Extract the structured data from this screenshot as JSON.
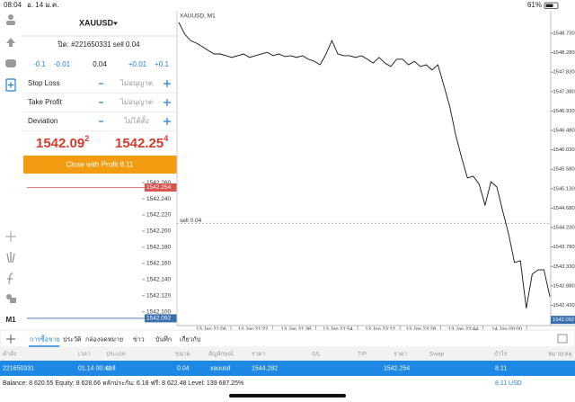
{
  "status_bar": {
    "time": "08:04",
    "date": "อ. 14 ม.ค.",
    "battery": "61%"
  },
  "sidebar": {
    "timeframe": "M1"
  },
  "order_panel": {
    "symbol": "XAUUSD",
    "order": "ปิด: #221650331 sell 0.04",
    "volume_steps": [
      "-0.1",
      "-0.01",
      "+0.01",
      "+0.1"
    ],
    "volume": "0.04",
    "fields": [
      {
        "label": "Stop Loss",
        "value": "ไม่อนุญาต"
      },
      {
        "label": "Take Profit",
        "value": "ไม่อนุญาต"
      },
      {
        "label": "Deviation",
        "value": "ไม่ได้ตั้ง"
      }
    ],
    "bid": {
      "main": "1542.09",
      "small": "2"
    },
    "ask": {
      "main": "1542.25",
      "small": "4"
    },
    "close_button": "Close with Profit 8.11"
  },
  "depth_chart": {
    "ylim": [
      1542.083,
      1542.269
    ],
    "yticks": [
      {
        "value": 1542.26,
        "label": "1542.260"
      },
      {
        "value": 1542.24,
        "label": "1542.240"
      },
      {
        "value": 1542.22,
        "label": "1542.220"
      },
      {
        "value": 1542.2,
        "label": "1542.200"
      },
      {
        "value": 1542.18,
        "label": "1542.180"
      },
      {
        "value": 1542.16,
        "label": "1542.160"
      },
      {
        "value": 1542.14,
        "label": "1542.140"
      },
      {
        "value": 1542.12,
        "label": "1542.120"
      },
      {
        "value": 1542.1,
        "label": "1542.100"
      }
    ],
    "ask": {
      "value": 1542.254,
      "label": "1542.254",
      "color": "#d9534f"
    },
    "bid": {
      "value": 1542.092,
      "label": "1542.092",
      "color": "#3a6fb0"
    }
  },
  "chart_data": {
    "type": "line",
    "title": "XAUUSD, M1",
    "color": "#111111",
    "values": [
      1548.98,
      1548.71,
      1548.56,
      1548.5,
      1548.42,
      1548.33,
      1548.25,
      1548.25,
      1548.21,
      1548.17,
      1548.21,
      1548.25,
      1548.17,
      1548.21,
      1548.25,
      1548.29,
      1548.21,
      1548.25,
      1548.19,
      1548.21,
      1548.17,
      1548.21,
      1548.13,
      1548.08,
      1548.0,
      1548.25,
      1548.56,
      1548.25,
      1548.21,
      1548.21,
      1548.17,
      1548.21,
      1548.13,
      1548.04,
      1548.17,
      1548.04,
      1547.96,
      1548.13,
      1548.13,
      1548.0,
      1548.08,
      1547.96,
      1548.0,
      1547.88,
      1548.0,
      1547.52,
      1547.04,
      1546.38,
      1545.86,
      1545.38,
      1545.42,
      1545.23,
      1544.75,
      1545.29,
      1545.17,
      1544.61,
      1544.08,
      1543.42,
      1543.46,
      1542.36,
      1543.15,
      1543.25,
      1543.25,
      1542.63
    ],
    "xlim": [
      0,
      63
    ],
    "ylim": [
      1541.96,
      1549.25
    ],
    "yticks": [
      {
        "value": 1548.73,
        "label": "1548.730"
      },
      {
        "value": 1548.28,
        "label": "1548.280"
      },
      {
        "value": 1547.83,
        "label": "1547.830"
      },
      {
        "value": 1547.38,
        "label": "1547.380"
      },
      {
        "value": 1546.93,
        "label": "1546.930"
      },
      {
        "value": 1546.48,
        "label": "1546.480"
      },
      {
        "value": 1546.03,
        "label": "1546.030"
      },
      {
        "value": 1545.58,
        "label": "1545.580"
      },
      {
        "value": 1545.13,
        "label": "1545.130"
      },
      {
        "value": 1544.68,
        "label": "1544.680"
      },
      {
        "value": 1544.23,
        "label": "1544.230"
      },
      {
        "value": 1543.78,
        "label": "1543.780"
      },
      {
        "value": 1543.33,
        "label": "1543.330"
      },
      {
        "value": 1542.88,
        "label": "1542.880"
      },
      {
        "value": 1542.43,
        "label": "1542.430"
      }
    ],
    "xticks": [
      {
        "value": 5.5,
        "label": "13 Jan 21:06"
      },
      {
        "value": 12.6,
        "label": "13 Jan 21:22"
      },
      {
        "value": 19.9,
        "label": "13 Jan 21:38"
      },
      {
        "value": 27,
        "label": "13 Jan 21:54"
      },
      {
        "value": 34.2,
        "label": "13 Jan 23:12"
      },
      {
        "value": 41.1,
        "label": "13 Jan 23:28"
      },
      {
        "value": 48.3,
        "label": "13 Jan 23:44"
      },
      {
        "value": 55.7,
        "label": "14 Jan 00:00"
      }
    ],
    "order_line": {
      "value": 1544.33,
      "label": "sell 0.04"
    },
    "current_price": {
      "value": 1542.092,
      "label": "1542.092"
    }
  },
  "tabs": [
    "การซื้อขาย",
    "ประวัติ",
    "กล่องจดหมาย",
    "ข่าว",
    "บันทึก",
    "เกี่ยวกับ"
  ],
  "table": {
    "header": [
      "คำสั่ง",
      "เวลา",
      "ประเภท",
      "ขนาด",
      "สัญลักษณ์",
      "ราคา",
      "S/L",
      "T/P",
      "ราคา",
      "Swap",
      "กำไร",
      "หมายเหตุ"
    ],
    "row": [
      "221650331",
      "01.14 00:41",
      "sell",
      "0.04",
      "xauusd",
      "1544.282",
      "1542.254",
      "8.11"
    ]
  },
  "balance": {
    "text": "Balance: 8 620.55 Equity: 8 628.66 หลักประกัน: 6.18 ฟรี: 8 622.48 Level: 139 687.25%",
    "profit": "8.11 USD"
  }
}
